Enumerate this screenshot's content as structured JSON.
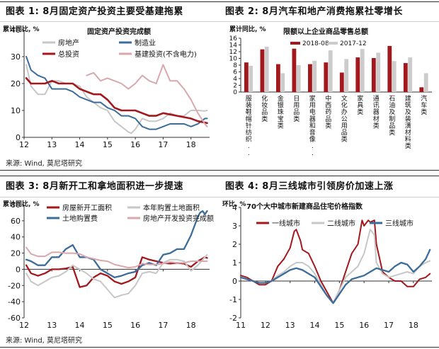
{
  "panels": {
    "p1": {
      "title": "图表 1: 8月固定资产投资主要受基建拖累",
      "source": "来源: Wind, 莫尼塔研究"
    },
    "p2": {
      "title": "图表 2: 8月汽车和地产消费拖累社零增长"
    },
    "p3": {
      "title": "图表 3: 8月新开工和拿地面积进一步提速",
      "source": "来源: Wind, 莫尼塔研究"
    },
    "p4": {
      "title": "图表 4: 8月三线城市引领房价加速上涨"
    }
  },
  "chart_data": [
    {
      "id": "c1",
      "type": "line",
      "title": "固定资产投资完成额",
      "ylabel": "累计同比, %",
      "xlabel": "",
      "ylim": [
        0,
        40
      ],
      "yticks": [
        0,
        10,
        20,
        30,
        40
      ],
      "x_ticks": [
        12,
        13,
        14,
        15,
        16,
        17,
        18
      ],
      "xlim": [
        12.0,
        18.67
      ],
      "grid": false,
      "legend": "top",
      "series": [
        {
          "name": "房地产",
          "color": "#c7c7c7",
          "width": 2,
          "x": [
            12.08,
            12.25,
            12.5,
            12.75,
            13.0,
            13.25,
            13.5,
            13.75,
            14.0,
            14.25,
            14.5,
            14.75,
            15.0,
            15.25,
            15.5,
            15.75,
            15.85,
            16.0,
            16.25,
            16.5,
            16.75,
            17.0,
            17.25,
            17.5,
            17.75,
            18.0,
            18.25,
            18.5,
            18.58
          ],
          "y": [
            27,
            19,
            16,
            16,
            21,
            21,
            20,
            20,
            19,
            15,
            13,
            11,
            10,
            6,
            4,
            2,
            1.5,
            3,
            7,
            6,
            6,
            7,
            9,
            8,
            8,
            10,
            10,
            9.8,
            10
          ]
        },
        {
          "name": "制造业",
          "color": "#3b6c9a",
          "width": 2,
          "x": [
            12.08,
            12.25,
            12.5,
            12.75,
            13.0,
            13.25,
            13.5,
            13.75,
            14.0,
            14.25,
            14.5,
            14.75,
            15.0,
            15.25,
            15.5,
            15.75,
            16.0,
            16.25,
            16.5,
            16.75,
            17.0,
            17.25,
            17.5,
            17.75,
            18.0,
            18.25,
            18.5,
            18.58
          ],
          "y": [
            30,
            25,
            23,
            22,
            18,
            18,
            18,
            17,
            15,
            14,
            13,
            13,
            11,
            10,
            8,
            8,
            7,
            4,
            3,
            3,
            4,
            5,
            5,
            5,
            4,
            5,
            7,
            7
          ]
        },
        {
          "name": "总投资",
          "color": "#a3181d",
          "width": 2.6,
          "x": [
            12.08,
            12.25,
            12.5,
            12.75,
            13.0,
            13.25,
            13.5,
            13.75,
            14.0,
            14.25,
            14.5,
            14.75,
            15.0,
            15.25,
            15.5,
            15.75,
            16.0,
            16.25,
            16.5,
            16.75,
            17.0,
            17.25,
            17.5,
            17.75,
            18.0,
            18.25,
            18.5,
            18.58
          ],
          "y": [
            22,
            20,
            20,
            20,
            21,
            20,
            20,
            20,
            18,
            17,
            16,
            16,
            14,
            11,
            10,
            10,
            10,
            9,
            8,
            8,
            9,
            8.5,
            8,
            7.5,
            7,
            6,
            5.5,
            5.3
          ]
        },
        {
          "name": "基建投资(不含电力)",
          "color": "#d8a8ad",
          "width": 2,
          "x": [
            14.25,
            14.5,
            14.75,
            15.0,
            15.25,
            15.5,
            15.75,
            16.0,
            16.25,
            16.5,
            16.75,
            17.0,
            17.25,
            17.5,
            17.75,
            18.0,
            18.25,
            18.5,
            18.58
          ],
          "y": [
            23,
            24,
            21,
            22,
            21,
            20,
            18,
            20,
            23,
            21,
            20,
            27,
            21,
            21,
            18,
            14,
            9,
            5,
            4
          ]
        }
      ]
    },
    {
      "id": "c2",
      "type": "bar",
      "title": "限额以上企业商品零售总额",
      "ylabel": "累计同比, %",
      "xlabel": "",
      "ylim": [
        0,
        16
      ],
      "yticks": [
        0,
        2,
        4,
        6,
        8,
        10,
        12,
        14,
        16
      ],
      "grid": false,
      "legend": "top",
      "categories": [
        "服装鞋帽针纺织...",
        "化妆品类",
        "金银珠宝类",
        "日用品类",
        "家用电器和音像...",
        "中西药品类",
        "文化办公用品类",
        "家具类",
        "通讯器材类",
        "石油及制品类",
        "建筑及装潢材料类",
        "汽车类"
      ],
      "series": [
        {
          "name": "2018-08",
          "color": "#a3181d",
          "values": [
            8.8,
            12.7,
            8.3,
            12.9,
            8.3,
            8.8,
            5.8,
            10.3,
            10.1,
            13.7,
            8.6,
            1.4
          ]
        },
        {
          "name": "2017-12",
          "color": "#cccccc",
          "values": [
            7.8,
            13.5,
            5.6,
            8.0,
            9.3,
            12.4,
            9.8,
            12.8,
            11.7,
            9.2,
            10.3,
            5.6
          ]
        }
      ]
    },
    {
      "id": "c3",
      "type": "line",
      "title": "",
      "ylabel": "累计同比, %",
      "xlabel": "",
      "ylim": [
        -60,
        80
      ],
      "yticks": [
        -60,
        -40,
        -20,
        0,
        20,
        40,
        60,
        80
      ],
      "x_ticks": [
        12,
        13,
        14,
        15,
        16,
        17,
        18
      ],
      "xlim": [
        12.0,
        18.67
      ],
      "grid": false,
      "legend": "top",
      "series": [
        {
          "name": "房屋新开工面积",
          "color": "#a3181d",
          "width": 2.3,
          "x": [
            12.08,
            12.25,
            12.5,
            12.75,
            13.0,
            13.25,
            13.5,
            13.75,
            14.0,
            14.25,
            14.5,
            14.75,
            15.0,
            15.25,
            15.5,
            15.75,
            16.0,
            16.25,
            16.5,
            16.75,
            17.0,
            17.25,
            17.5,
            17.75,
            18.0,
            18.25,
            18.5,
            18.58
          ],
          "y": [
            5,
            -5,
            -8,
            -5,
            0,
            0,
            1,
            3,
            -22,
            -20,
            -10,
            -5,
            -8,
            -15,
            -18,
            -15,
            -10,
            15,
            12,
            10,
            8,
            7,
            8,
            7,
            3,
            10,
            15,
            14
          ]
        },
        {
          "name": "本年购置土地面积",
          "color": "#c7c7c7",
          "width": 2,
          "x": [
            12.08,
            12.25,
            12.5,
            12.75,
            13.0,
            13.25,
            13.5,
            13.75,
            14.0,
            14.25,
            14.5,
            14.75,
            15.0,
            15.25,
            15.5,
            15.75,
            16.0,
            16.25,
            16.5,
            16.75,
            17.0,
            17.25,
            17.5,
            17.75,
            18.0,
            18.25,
            18.5,
            18.58
          ],
          "y": [
            -5,
            -15,
            -20,
            -15,
            -10,
            -8,
            -3,
            5,
            0,
            -5,
            -12,
            -15,
            -25,
            -35,
            -32,
            -30,
            -20,
            -5,
            -3,
            -5,
            8,
            12,
            12,
            10,
            -2,
            5,
            15,
            18
          ]
        },
        {
          "name": "土地购置费",
          "color": "#3b6c9a",
          "width": 2.3,
          "x": [
            12.08,
            12.25,
            12.5,
            12.75,
            13.0,
            13.25,
            13.5,
            13.75,
            14.0,
            14.25,
            14.5,
            14.75,
            15.0,
            15.25,
            15.5,
            15.75,
            16.0,
            16.25,
            16.5,
            16.75,
            17.0,
            17.25,
            17.5,
            17.75,
            18.0,
            18.25,
            18.33,
            18.42,
            18.5,
            18.58
          ],
          "y": [
            12,
            10,
            5,
            5,
            15,
            15,
            25,
            30,
            15,
            15,
            12,
            0,
            -5,
            -10,
            -8,
            -5,
            -3,
            5,
            8,
            5,
            18,
            20,
            25,
            25,
            42,
            65,
            70,
            72,
            68,
            72
          ]
        },
        {
          "name": "房地产开发投资完成额",
          "color": "#d8a8ad",
          "width": 2,
          "x": [
            12.08,
            12.25,
            12.5,
            12.75,
            13.0,
            13.25,
            13.5,
            13.75,
            14.0,
            14.25,
            14.5,
            14.75,
            15.0,
            15.25,
            15.5,
            15.75,
            16.0,
            16.25,
            16.5,
            16.75,
            17.0,
            17.25,
            17.5,
            17.75,
            18.0,
            18.25,
            18.5,
            18.58
          ],
          "y": [
            27,
            19,
            16,
            16,
            21,
            21,
            20,
            20,
            19,
            15,
            13,
            11,
            10,
            6,
            4,
            2,
            3,
            7,
            6,
            6,
            7,
            9,
            8,
            8,
            10,
            10,
            10,
            10
          ]
        }
      ]
    },
    {
      "id": "c4",
      "type": "line",
      "title": "70个大中城市新建商品住宅价格指数",
      "ylabel": "环比, %",
      "xlabel": "",
      "ylim": [
        -2,
        4
      ],
      "yticks": [
        -2,
        -1,
        0,
        1,
        2,
        3,
        4
      ],
      "x_ticks": [
        11,
        12,
        13,
        14,
        15,
        16,
        17,
        18
      ],
      "xlim": [
        11.0,
        18.75
      ],
      "grid": false,
      "legend": "top",
      "series": [
        {
          "name": "一线城市",
          "color": "#a3181d",
          "width": 2,
          "x": [
            11.0,
            11.25,
            11.5,
            11.75,
            12.0,
            12.25,
            12.5,
            12.75,
            13.0,
            13.17,
            13.25,
            13.42,
            13.5,
            13.75,
            14.0,
            14.25,
            14.5,
            14.75,
            15.0,
            15.25,
            15.5,
            15.75,
            15.92,
            16.0,
            16.17,
            16.25,
            16.42,
            16.5,
            16.75,
            17.0,
            17.25,
            17.5,
            17.75,
            18.0,
            18.25,
            18.5,
            18.67
          ],
          "y": [
            0.3,
            0.2,
            0,
            -0.2,
            -0.2,
            0,
            0.8,
            1.2,
            1.8,
            2.7,
            2.8,
            2.2,
            1.7,
            1.5,
            0.8,
            0,
            -0.6,
            -1.2,
            -0.5,
            0.5,
            1.5,
            2.0,
            3.3,
            3.0,
            3.3,
            3.2,
            3.3,
            2.0,
            0.5,
            0.2,
            0,
            0,
            -0.3,
            -0.3,
            0.1,
            0.2,
            0.4
          ]
        },
        {
          "name": "二线城市",
          "color": "#c7c7c7",
          "width": 2,
          "x": [
            11.0,
            11.25,
            11.5,
            11.75,
            12.0,
            12.25,
            12.5,
            12.75,
            13.0,
            13.25,
            13.5,
            13.75,
            14.0,
            14.25,
            14.5,
            14.75,
            15.0,
            15.25,
            15.5,
            15.75,
            16.0,
            16.17,
            16.25,
            16.42,
            16.5,
            16.75,
            17.0,
            17.25,
            17.5,
            17.75,
            18.0,
            18.25,
            18.5,
            18.67
          ],
          "y": [
            0.2,
            0.1,
            0,
            -0.1,
            -0.1,
            0,
            0.3,
            0.5,
            0.8,
            1.0,
            1.0,
            0.8,
            0.4,
            -0.2,
            -0.8,
            -1.2,
            -0.5,
            0.2,
            0.5,
            0.8,
            1.5,
            2.4,
            2.8,
            2.5,
            1.0,
            0.4,
            0.2,
            0.3,
            0.4,
            0.5,
            0.4,
            0.8,
            1.0,
            1.1
          ]
        },
        {
          "name": "三线城市",
          "color": "#3b6c9a",
          "width": 2.3,
          "x": [
            11.0,
            11.25,
            11.5,
            11.75,
            12.0,
            12.25,
            12.5,
            12.75,
            13.0,
            13.25,
            13.5,
            13.75,
            14.0,
            14.25,
            14.5,
            14.75,
            15.0,
            15.25,
            15.5,
            15.75,
            16.0,
            16.25,
            16.5,
            16.75,
            17.0,
            17.25,
            17.5,
            17.75,
            18.0,
            18.25,
            18.5,
            18.67
          ],
          "y": [
            0.2,
            0.1,
            0,
            -0.1,
            -0.1,
            0,
            0.2,
            0.4,
            0.6,
            0.7,
            0.6,
            0.4,
            0.2,
            -0.3,
            -0.8,
            -1.2,
            -0.7,
            -0.2,
            0.1,
            0.2,
            0.3,
            0.5,
            0.7,
            0.6,
            0.5,
            0.8,
            1.0,
            0.9,
            0.5,
            0.8,
            1.2,
            1.7
          ]
        }
      ]
    }
  ]
}
